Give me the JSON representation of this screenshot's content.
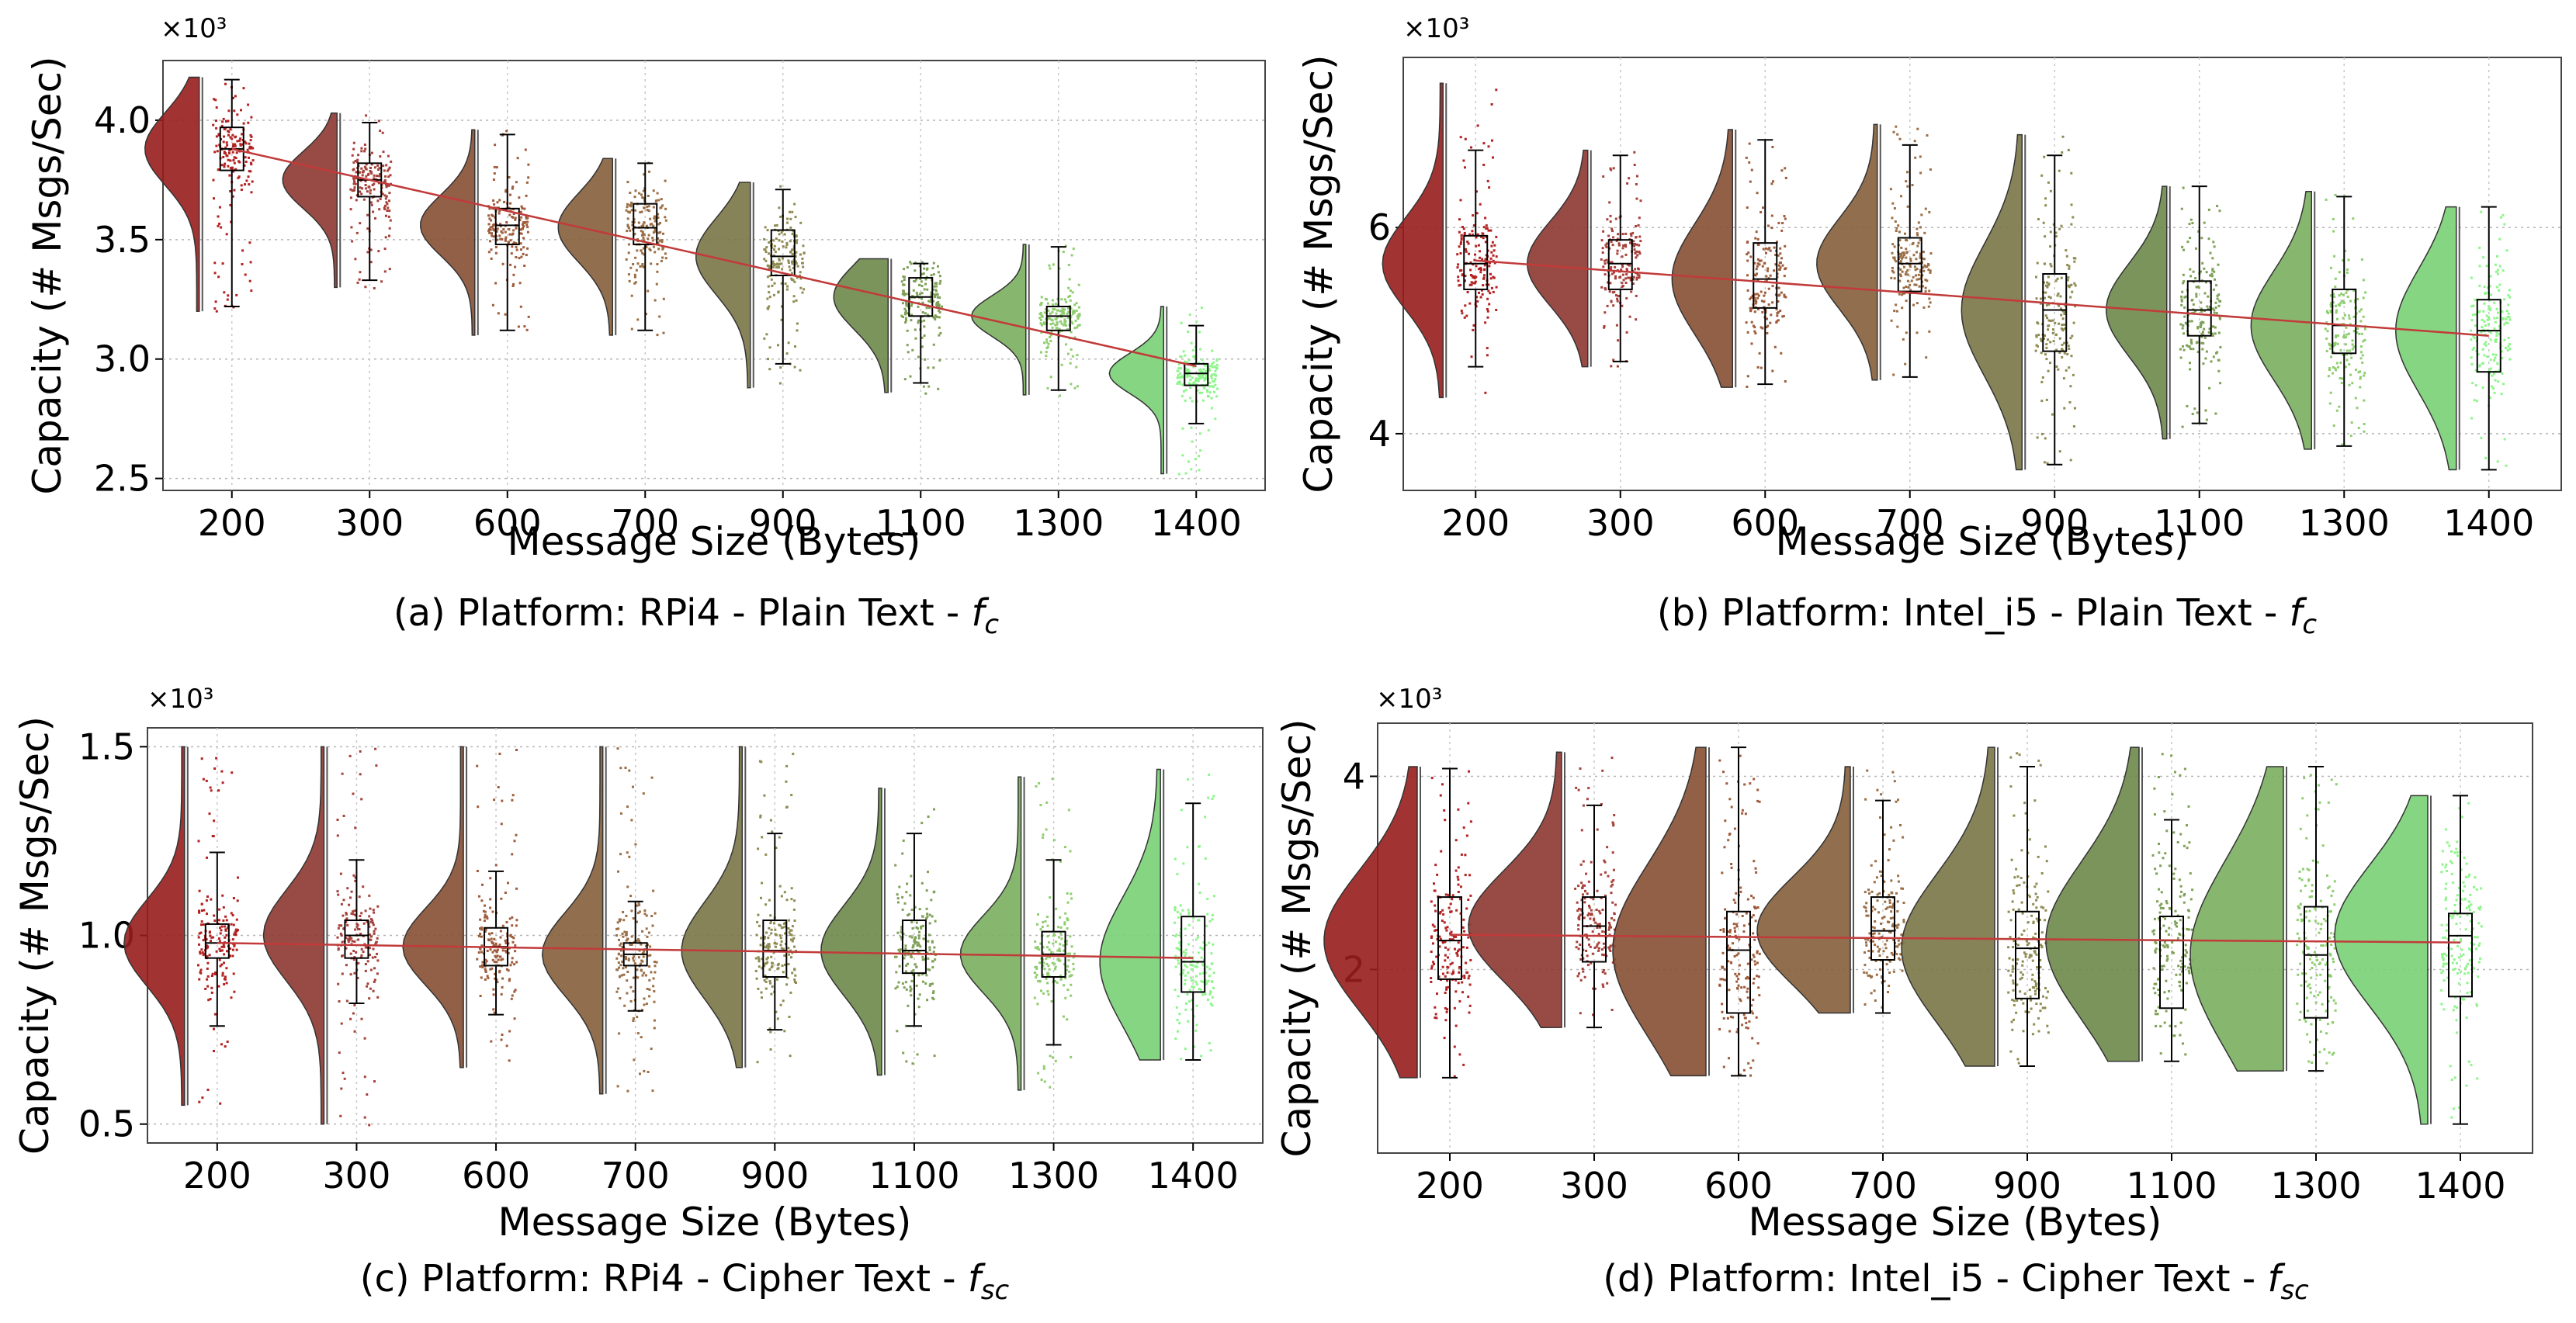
{
  "figure": {
    "panels": [
      {
        "caption_main": "(a) Platform: RPi4 - Plain Text - ",
        "caption_sym": "f",
        "caption_sub": "c"
      },
      {
        "caption_main": "(b) Platform: Intel_i5 - Plain Text - ",
        "caption_sym": "f",
        "caption_sub": "c"
      },
      {
        "caption_main": "(c) Platform: RPi4 - Cipher Text - ",
        "caption_sym": "f",
        "caption_sub": "sc"
      },
      {
        "caption_main": "(d) Platform: Intel_i5 - Cipher Text - ",
        "caption_sym": "f",
        "caption_sub": "sc"
      }
    ]
  },
  "chart_data": [
    {
      "type": "raincloud",
      "title": "(a) Platform: RPi4 - Plain Text - f_c",
      "xlabel": "Message Size (Bytes)",
      "ylabel": "Capacity (# Msgs/Sec)",
      "y_multiplier": "×10³",
      "categories": [
        "200",
        "300",
        "600",
        "700",
        "900",
        "1100",
        "1300",
        "1400"
      ],
      "ylim": [
        2.45,
        4.25
      ],
      "yticks": [
        2.5,
        3.0,
        3.5,
        4.0
      ],
      "ytick_labels": [
        "2.5",
        "3.0",
        "3.5",
        "4.0"
      ],
      "box": {
        "min": [
          3.22,
          3.33,
          3.12,
          3.12,
          2.98,
          2.9,
          2.87,
          2.73
        ],
        "q1": [
          3.79,
          3.68,
          3.48,
          3.48,
          3.35,
          3.18,
          3.12,
          2.89
        ],
        "median": [
          3.88,
          3.75,
          3.56,
          3.55,
          3.43,
          3.26,
          3.18,
          2.94
        ],
        "q3": [
          3.97,
          3.82,
          3.63,
          3.65,
          3.54,
          3.34,
          3.22,
          2.98
        ],
        "max": [
          4.17,
          3.99,
          3.94,
          3.82,
          3.71,
          3.4,
          3.47,
          3.14
        ]
      },
      "range": {
        "min": [
          3.2,
          3.3,
          3.1,
          3.1,
          2.88,
          2.86,
          2.85,
          2.52
        ],
        "max": [
          4.18,
          4.03,
          3.96,
          3.84,
          3.74,
          3.42,
          3.48,
          3.22
        ]
      },
      "trend_line": [
        3.88,
        2.97
      ]
    },
    {
      "type": "raincloud",
      "title": "(b) Platform: Intel_i5 - Plain Text - f_c",
      "xlabel": "Message Size (Bytes)",
      "ylabel": "Capacity (# Msgs/Sec)",
      "y_multiplier": "×10³",
      "categories": [
        "200",
        "300",
        "600",
        "700",
        "900",
        "1100",
        "1300",
        "1400"
      ],
      "ylim": [
        3.45,
        7.65
      ],
      "yticks": [
        4,
        6
      ],
      "ytick_labels": [
        "4",
        "6"
      ],
      "box": {
        "min": [
          4.65,
          4.7,
          4.48,
          4.55,
          3.7,
          4.1,
          3.88,
          3.65
        ],
        "q1": [
          5.4,
          5.4,
          5.22,
          5.38,
          4.8,
          4.95,
          4.78,
          4.6
        ],
        "median": [
          5.65,
          5.65,
          5.5,
          5.65,
          5.2,
          5.2,
          5.05,
          5.0
        ],
        "q3": [
          5.92,
          5.88,
          5.85,
          5.9,
          5.55,
          5.48,
          5.4,
          5.3
        ],
        "max": [
          6.75,
          6.7,
          6.85,
          6.8,
          6.7,
          6.4,
          6.3,
          6.2
        ]
      },
      "range": {
        "min": [
          4.35,
          4.65,
          4.45,
          4.52,
          3.65,
          3.95,
          3.85,
          3.65
        ],
        "max": [
          7.4,
          6.75,
          6.95,
          7.0,
          6.9,
          6.4,
          6.35,
          6.2
        ]
      },
      "trend_line": [
        5.68,
        4.95
      ]
    },
    {
      "type": "raincloud",
      "title": "(c) Platform: RPi4 - Cipher Text - f_sc",
      "xlabel": "Message Size (Bytes)",
      "ylabel": "Capacity (# Msgs/Sec)",
      "y_multiplier": "×10³",
      "categories": [
        "200",
        "300",
        "600",
        "700",
        "900",
        "1100",
        "1300",
        "1400"
      ],
      "ylim": [
        0.45,
        1.55
      ],
      "yticks": [
        0.5,
        1.0,
        1.5
      ],
      "ytick_labels": [
        "0.5",
        "1.0",
        "1.5"
      ],
      "box": {
        "min": [
          0.76,
          0.82,
          0.79,
          0.8,
          0.75,
          0.76,
          0.71,
          0.67
        ],
        "q1": [
          0.94,
          0.94,
          0.92,
          0.92,
          0.89,
          0.9,
          0.89,
          0.85
        ],
        "median": [
          0.98,
          1.0,
          0.97,
          0.95,
          0.96,
          0.96,
          0.95,
          0.93
        ],
        "q3": [
          1.03,
          1.04,
          1.02,
          0.98,
          1.04,
          1.04,
          1.01,
          1.05
        ],
        "max": [
          1.22,
          1.2,
          1.17,
          1.09,
          1.27,
          1.27,
          1.2,
          1.35
        ]
      },
      "range": {
        "min": [
          0.55,
          0.5,
          0.65,
          0.58,
          0.65,
          0.63,
          0.59,
          0.67
        ],
        "max": [
          1.5,
          1.5,
          1.5,
          1.5,
          1.5,
          1.39,
          1.42,
          1.44
        ]
      },
      "trend_line": [
        0.98,
        0.94
      ]
    },
    {
      "type": "raincloud",
      "title": "(d) Platform: Intel_i5 - Cipher Text - f_sc",
      "xlabel": "Message Size (Bytes)",
      "ylabel": "Capacity (# Msgs/Sec)",
      "y_multiplier": "×10³",
      "categories": [
        "200",
        "300",
        "600",
        "700",
        "900",
        "1100",
        "1300",
        "1400"
      ],
      "ylim": [
        0.1,
        4.55
      ],
      "yticks": [
        2,
        4
      ],
      "ytick_labels": [
        "2",
        "4"
      ],
      "box": {
        "min": [
          0.88,
          1.4,
          0.9,
          1.55,
          1.0,
          1.05,
          0.95,
          0.4
        ],
        "q1": [
          1.9,
          2.08,
          1.55,
          2.1,
          1.7,
          1.6,
          1.5,
          1.72
        ],
        "median": [
          2.3,
          2.45,
          2.2,
          2.4,
          2.22,
          2.3,
          2.15,
          2.35
        ],
        "q3": [
          2.75,
          2.75,
          2.6,
          2.75,
          2.6,
          2.55,
          2.65,
          2.58
        ],
        "max": [
          4.08,
          3.7,
          4.3,
          3.75,
          4.1,
          3.55,
          4.1,
          3.8
        ]
      },
      "range": {
        "min": [
          0.88,
          1.4,
          0.9,
          1.55,
          1.0,
          1.05,
          0.95,
          0.4
        ],
        "max": [
          4.1,
          4.25,
          4.3,
          4.1,
          4.3,
          4.3,
          4.1,
          3.8
        ]
      },
      "trend_line": [
        2.36,
        2.28
      ]
    }
  ],
  "colors": [
    "#b32222",
    "#a6413a",
    "#9e5c3c",
    "#9b6e45",
    "#8f8b52",
    "#7fa057",
    "#8fce6f",
    "#8ef58a"
  ],
  "accent_line": "#c23a3a"
}
